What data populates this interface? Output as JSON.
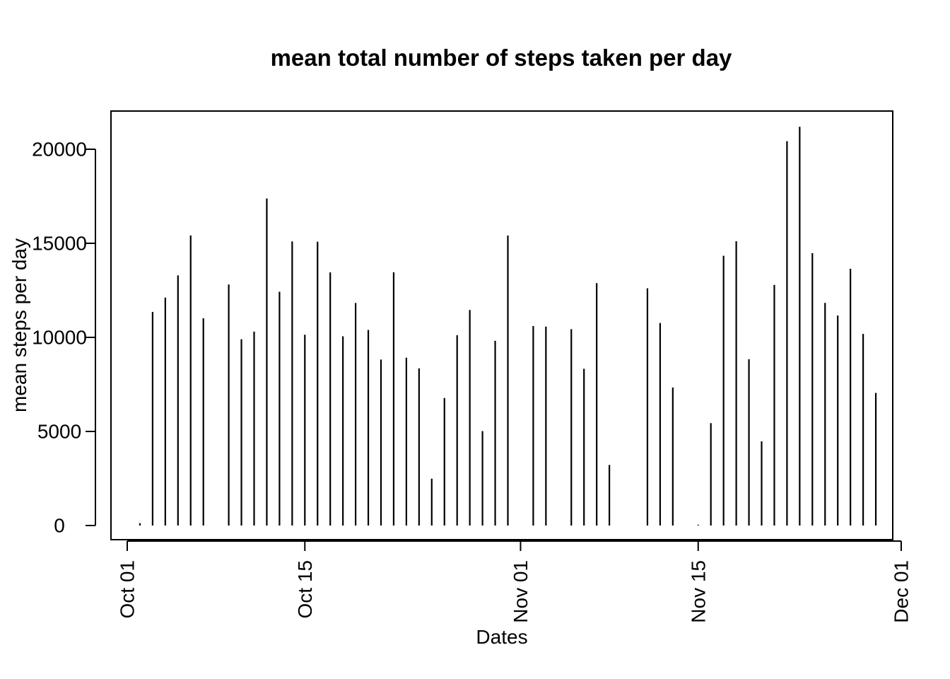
{
  "chart_data": {
    "type": "bar",
    "title": "mean total number of steps taken per day",
    "xlabel": "Dates",
    "ylabel": "mean steps per day",
    "y_ticks": [
      0,
      5000,
      10000,
      15000,
      20000
    ],
    "y_tick_labels": [
      "0",
      "5000",
      "10000",
      "15000",
      "20000"
    ],
    "x_ticks": [
      {
        "date": "2012-10-01",
        "label": "Oct 01"
      },
      {
        "date": "2012-10-15",
        "label": "Oct 15"
      },
      {
        "date": "2012-11-01",
        "label": "Nov 01"
      },
      {
        "date": "2012-11-15",
        "label": "Nov 15"
      },
      {
        "date": "2012-12-01",
        "label": "Dec 01"
      }
    ],
    "xlim": [
      "2012-10-01",
      "2012-11-30"
    ],
    "ylim": [
      0,
      21194
    ],
    "grid": false,
    "dates": [
      "2012-10-02",
      "2012-10-03",
      "2012-10-04",
      "2012-10-05",
      "2012-10-06",
      "2012-10-07",
      "2012-10-09",
      "2012-10-10",
      "2012-10-11",
      "2012-10-12",
      "2012-10-13",
      "2012-10-14",
      "2012-10-15",
      "2012-10-16",
      "2012-10-17",
      "2012-10-18",
      "2012-10-19",
      "2012-10-20",
      "2012-10-21",
      "2012-10-22",
      "2012-10-23",
      "2012-10-24",
      "2012-10-25",
      "2012-10-26",
      "2012-10-27",
      "2012-10-28",
      "2012-10-29",
      "2012-10-30",
      "2012-10-31",
      "2012-11-02",
      "2012-11-03",
      "2012-11-05",
      "2012-11-06",
      "2012-11-07",
      "2012-11-08",
      "2012-11-11",
      "2012-11-12",
      "2012-11-13",
      "2012-11-15",
      "2012-11-16",
      "2012-11-17",
      "2012-11-18",
      "2012-11-19",
      "2012-11-20",
      "2012-11-21",
      "2012-11-22",
      "2012-11-23",
      "2012-11-24",
      "2012-11-25",
      "2012-11-26",
      "2012-11-27",
      "2012-11-28",
      "2012-11-29"
    ],
    "values": [
      126,
      11352,
      12116,
      13294,
      15420,
      11015,
      12811,
      9900,
      10304,
      17382,
      12426,
      15098,
      10139,
      15084,
      13452,
      10056,
      11829,
      10395,
      8821,
      13460,
      8918,
      8355,
      2492,
      6778,
      10119,
      11458,
      5018,
      9819,
      15414,
      10600,
      10571,
      10439,
      8334,
      12883,
      3219,
      12608,
      10765,
      7336,
      41,
      5441,
      14339,
      15110,
      8841,
      4472,
      12787,
      20427,
      21194,
      14478,
      11834,
      11162,
      13646,
      10183,
      7047
    ]
  }
}
